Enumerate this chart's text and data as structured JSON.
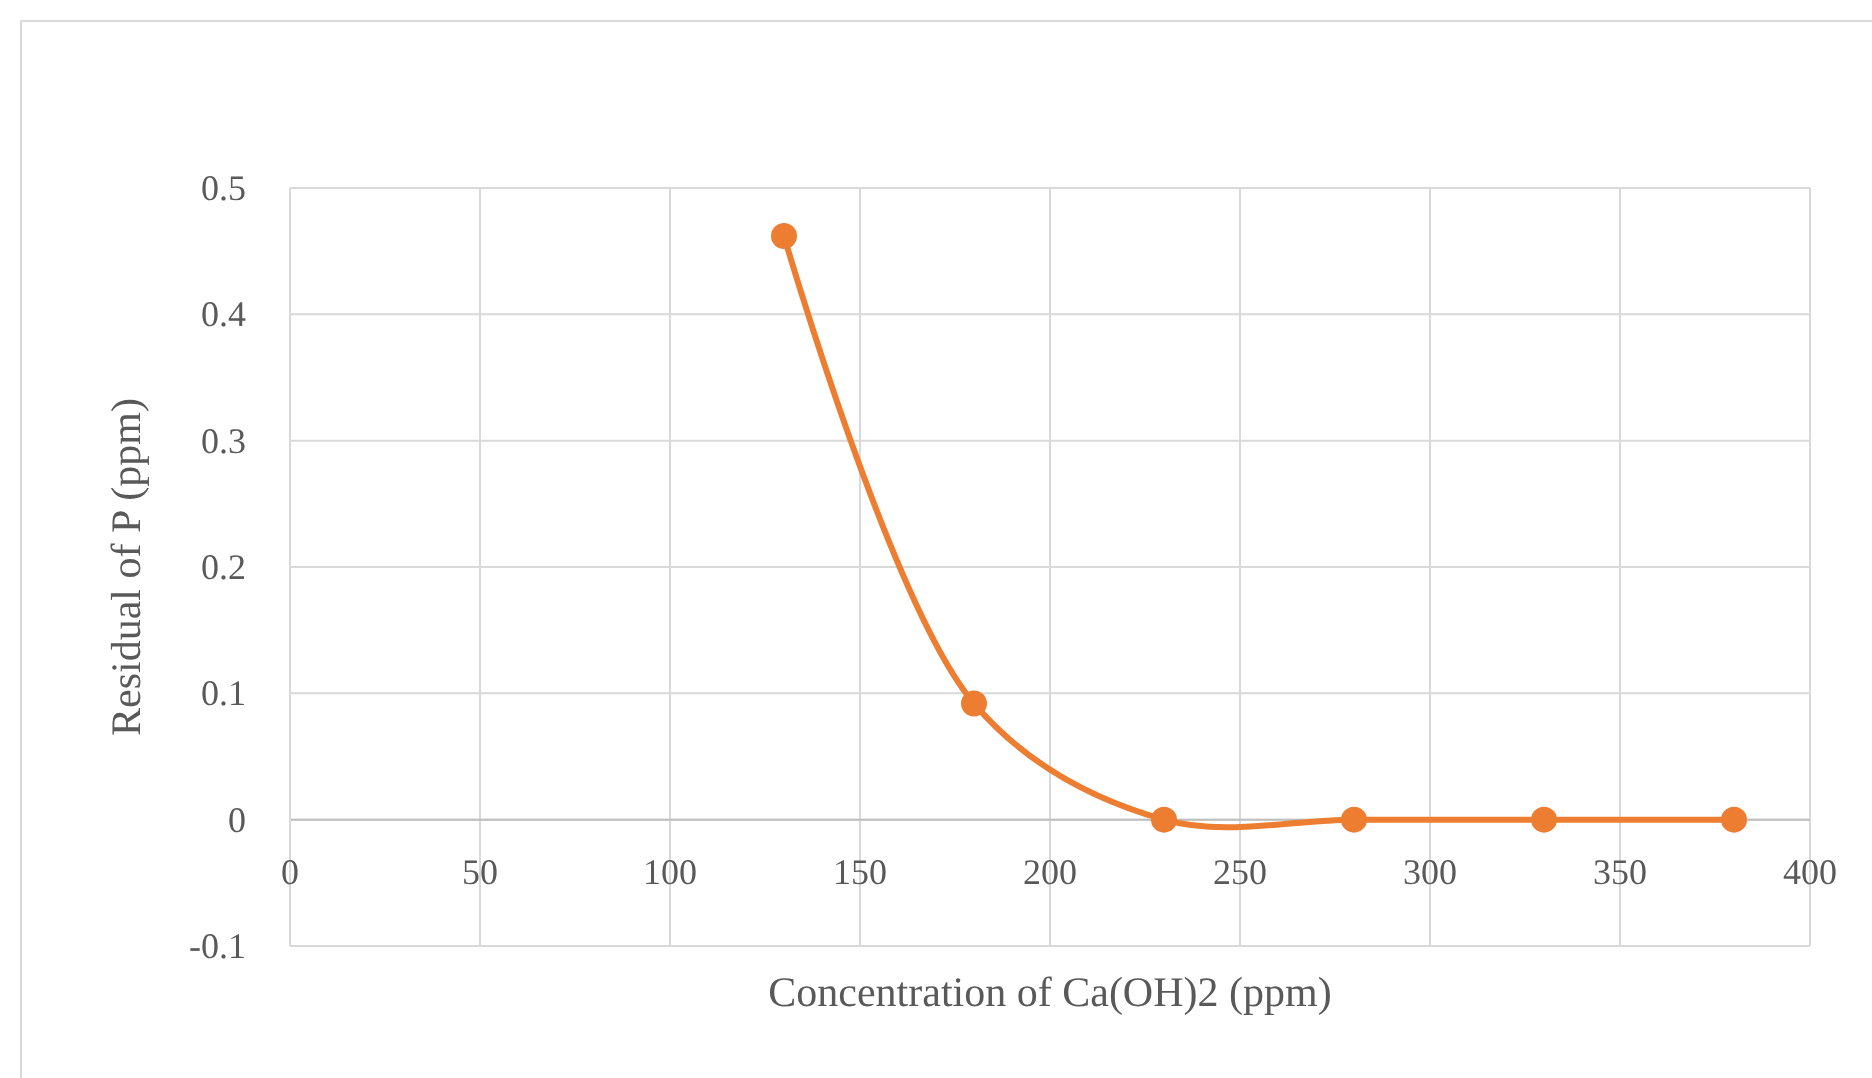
{
  "chart_data": {
    "type": "line",
    "xlabel": "Concentration of Ca(OH)2 (ppm)",
    "ylabel": "Residual of P (ppm)",
    "x": [
      130,
      180,
      230,
      280,
      330,
      380
    ],
    "series": [
      {
        "color": "#ed7d31",
        "values": [
          0.462,
          0.092,
          0,
          0,
          0,
          0
        ]
      }
    ],
    "xlim": [
      0,
      400
    ],
    "xticks": [
      0,
      50,
      100,
      150,
      200,
      250,
      300,
      350,
      400
    ],
    "ylim": [
      -0.1,
      0.5
    ],
    "yticks": [
      -0.1,
      0,
      0.1,
      0.2,
      0.3,
      0.4,
      0.5
    ],
    "grid": true,
    "marker": "circle",
    "line_style": "solid"
  }
}
